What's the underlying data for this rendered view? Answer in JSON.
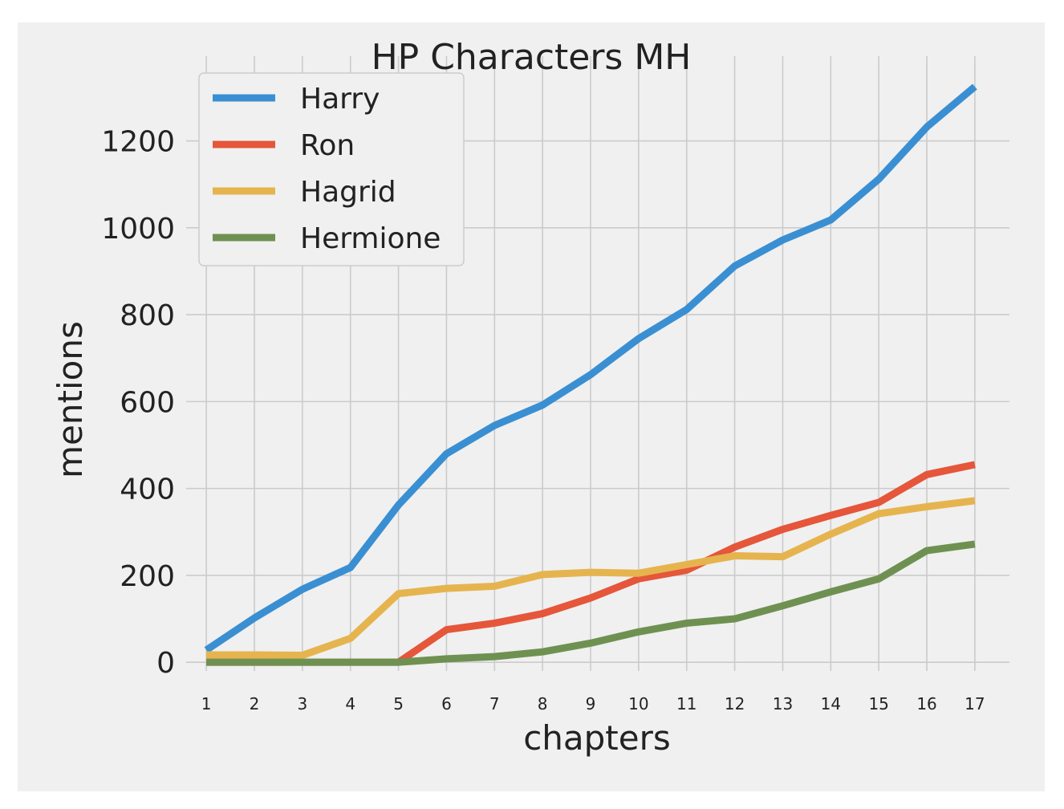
{
  "chart_data": {
    "type": "line",
    "title": "HP Characters MH",
    "xlabel": "chapters",
    "ylabel": "mentions",
    "categories": [
      "1",
      "2",
      "3",
      "4",
      "5",
      "6",
      "7",
      "8",
      "9",
      "10",
      "11",
      "12",
      "13",
      "14",
      "15",
      "16",
      "17"
    ],
    "x": [
      1,
      2,
      3,
      4,
      5,
      6,
      7,
      8,
      9,
      10,
      11,
      12,
      13,
      14,
      15,
      16,
      17
    ],
    "yticks": [
      0,
      200,
      400,
      600,
      800,
      1000,
      1200
    ],
    "ylim": [
      -20,
      1395
    ],
    "xlim": [
      0.58,
      17.72
    ],
    "grid": true,
    "legend_position": "upper-left",
    "background": "#f0f0f0",
    "series": [
      {
        "name": "Harry",
        "color": "#3a8fd2",
        "values": [
          28,
          102,
          168,
          218,
          362,
          480,
          545,
          592,
          662,
          745,
          812,
          912,
          972,
          1018,
          1112,
          1232,
          1325
        ]
      },
      {
        "name": "Ron",
        "color": "#e5563a",
        "values": [
          0,
          0,
          0,
          0,
          0,
          75,
          90,
          112,
          148,
          192,
          212,
          265,
          306,
          338,
          368,
          432,
          455
        ]
      },
      {
        "name": "Hagrid",
        "color": "#e6b44e",
        "values": [
          17,
          17,
          16,
          55,
          158,
          170,
          175,
          202,
          207,
          205,
          225,
          245,
          243,
          295,
          342,
          358,
          372
        ]
      },
      {
        "name": "Hermione",
        "color": "#6e9152",
        "values": [
          0,
          0,
          0,
          0,
          0,
          8,
          13,
          24,
          44,
          70,
          90,
          100,
          130,
          162,
          192,
          257,
          272
        ]
      }
    ]
  }
}
